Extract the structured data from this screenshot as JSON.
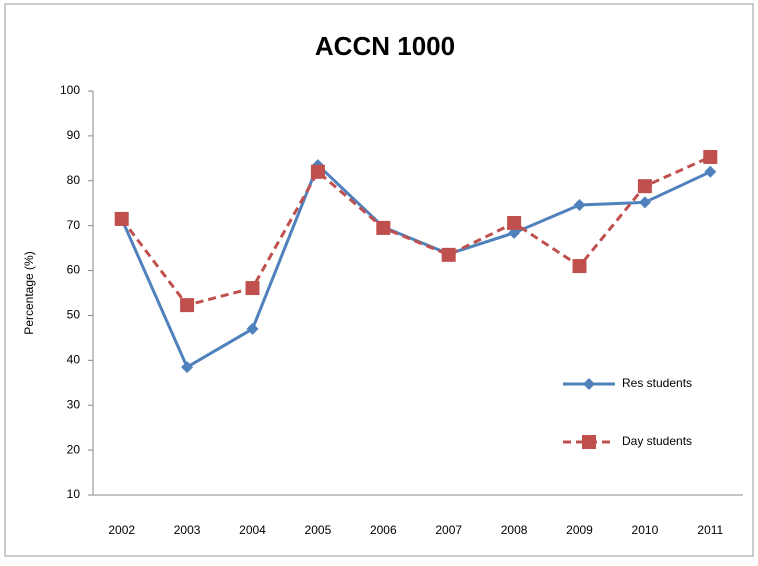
{
  "chart_data": {
    "type": "line",
    "title": "ACCN 1000",
    "y_label": "Percentage (%)",
    "categories": [
      "2002",
      "2003",
      "2004",
      "2005",
      "2006",
      "2007",
      "2008",
      "2009",
      "2010",
      "2011"
    ],
    "series": [
      {
        "name": "Res students",
        "color": "#4f81bd",
        "marker": "diamond",
        "dashed": false,
        "values": [
          71.5,
          38.5,
          47,
          83.5,
          69.7,
          63.7,
          68.4,
          74.6,
          75.2,
          82
        ]
      },
      {
        "name": "Day students",
        "color": "#c0504d",
        "marker": "square",
        "dashed": true,
        "values": [
          71.5,
          52.3,
          56.1,
          82,
          69.5,
          63.5,
          70.6,
          61,
          78.8,
          85.3
        ]
      }
    ],
    "ylim": [
      10,
      100
    ],
    "yticks": [
      10,
      20,
      30,
      40,
      50,
      60,
      70,
      80,
      90,
      100
    ],
    "grid": false,
    "legend": "right"
  }
}
